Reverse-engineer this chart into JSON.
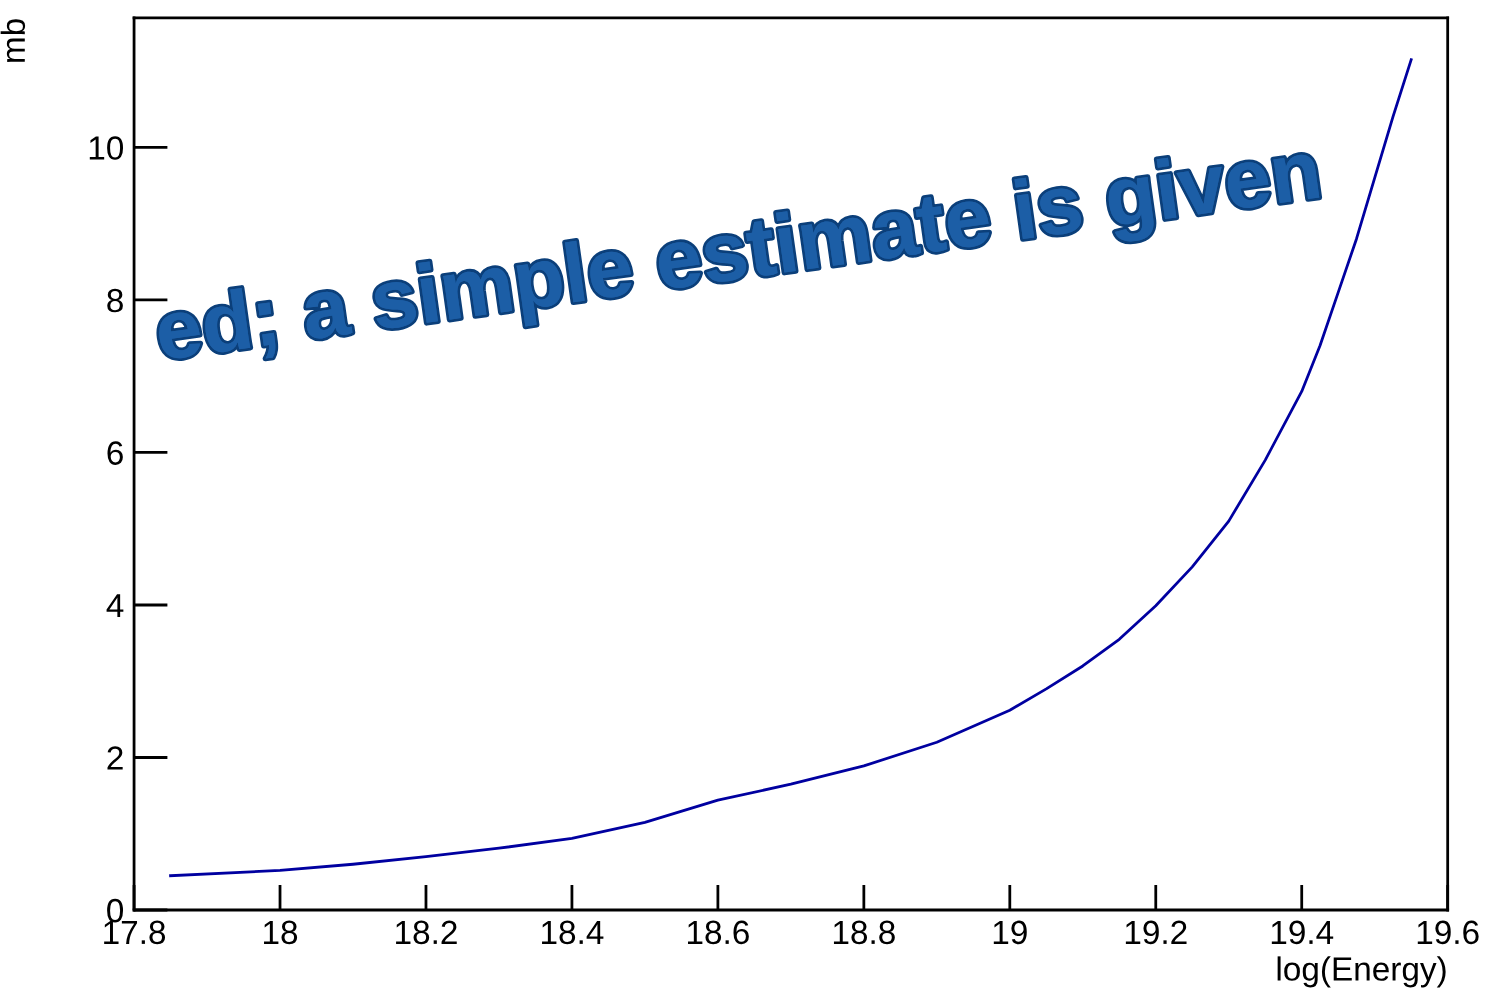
{
  "chart_data": {
    "type": "line",
    "xlabel": "log(Energy)",
    "ylabel": "mb",
    "annotations": [
      "ed; a simple estimate is given"
    ],
    "x": [
      17.85,
      18.0,
      18.1,
      18.2,
      18.3,
      18.4,
      18.5,
      18.6,
      18.7,
      18.8,
      18.9,
      19.0,
      19.05,
      19.1,
      19.15,
      19.2,
      19.25,
      19.3,
      19.35,
      19.4,
      19.425,
      19.45,
      19.475,
      19.5,
      19.525,
      19.55
    ],
    "series": [
      {
        "color": "#0000a0",
        "values": [
          0.45,
          0.52,
          0.6,
          0.7,
          0.81,
          0.94,
          1.15,
          1.44,
          1.65,
          1.89,
          2.2,
          2.62,
          2.9,
          3.2,
          3.55,
          3.99,
          4.5,
          5.1,
          5.9,
          6.8,
          7.4,
          8.1,
          8.8,
          9.6,
          10.4,
          11.15
        ]
      }
    ],
    "xlim": [
      17.8,
      19.6
    ],
    "xticks": [
      17.8,
      18,
      18.2,
      18.4,
      18.6,
      18.8,
      19,
      19.2,
      19.4,
      19.6
    ],
    "ylim": [
      0,
      11.7
    ],
    "yticks": [
      0,
      2,
      4,
      6,
      8,
      10
    ],
    "grid": false,
    "legend": false,
    "marker": "none",
    "line_style": "solid"
  }
}
